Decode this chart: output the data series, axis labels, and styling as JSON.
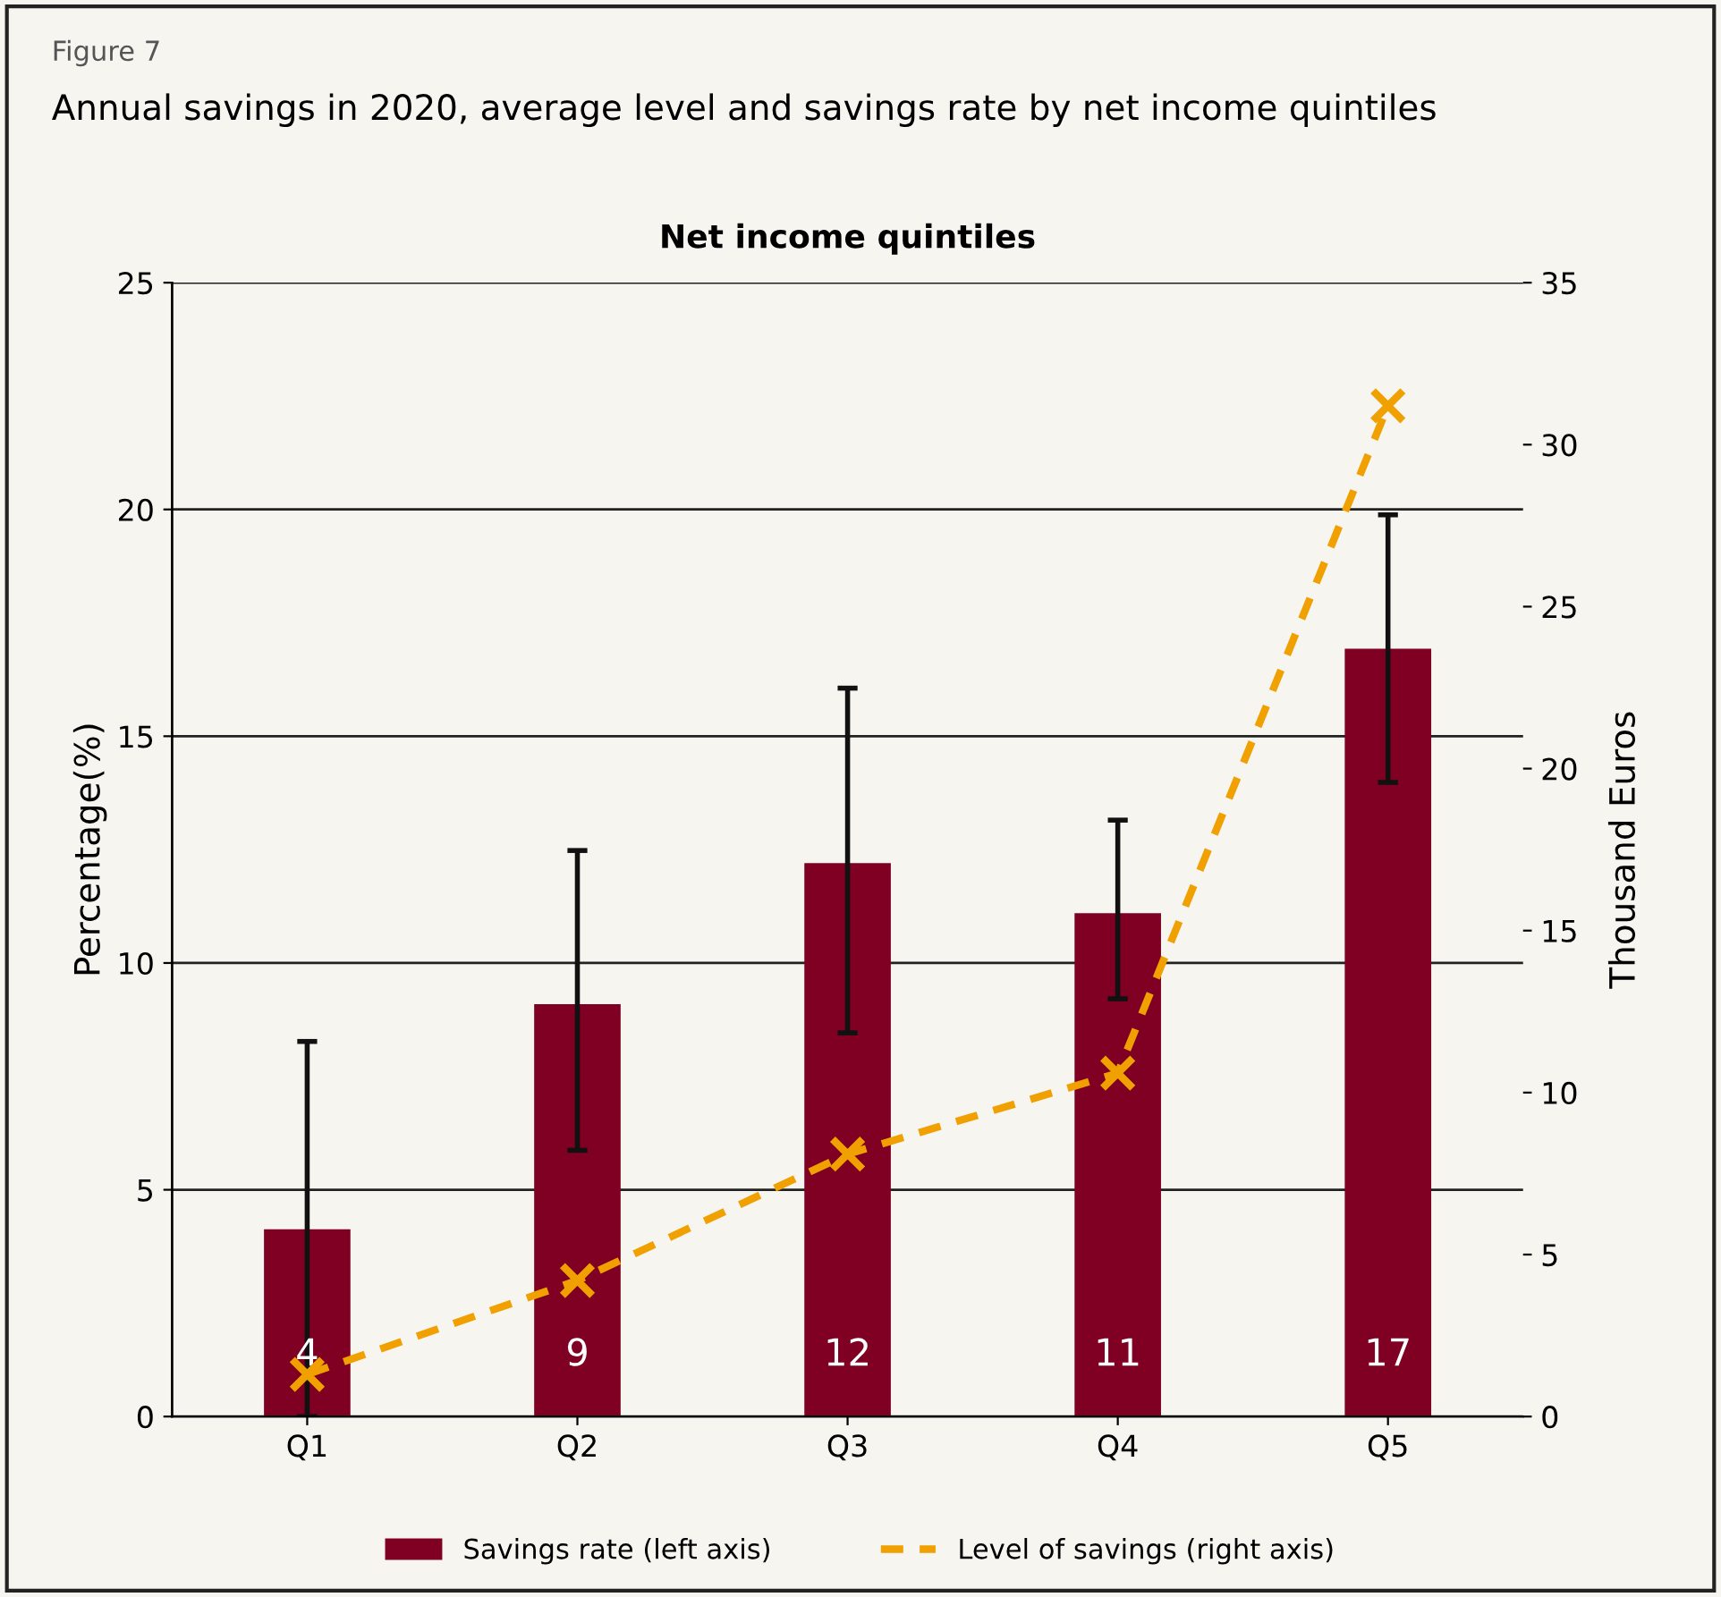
{
  "chart_data": {
    "type": "bar",
    "title": "Net income quintiles",
    "annotations": [
      "Figure 7",
      "Annual savings in 2020, average level and savings rate by net income quintiles"
    ],
    "ylabel": "Percentage(%)",
    "y2label": "Thousand Euros",
    "categories": [
      "Q1",
      "Q2",
      "Q3",
      "Q4",
      "Q5"
    ],
    "series": [
      {
        "name": "Savings rate (left axis)",
        "color": "#7f0023",
        "values": [
          4.13,
          9.09,
          12.2,
          11.1,
          16.93
        ],
        "errors": [
          [
            0.0,
            8.27
          ],
          [
            5.87,
            12.48
          ],
          [
            8.46,
            16.06
          ],
          [
            9.21,
            13.15
          ],
          [
            13.98,
            19.88
          ]
        ],
        "value_labels": [
          "4",
          "9",
          "12",
          "11",
          "17"
        ]
      },
      {
        "name": "Level of savings (right axis)",
        "type": "line",
        "axis": "y2",
        "color": "#f0a000",
        "marker": "cross",
        "line_style": "dashed",
        "values": [
          1.3,
          4.2,
          8.1,
          10.6,
          31.2
        ]
      }
    ],
    "ylim": [
      0,
      25
    ],
    "yticks": [
      0,
      5,
      10,
      15,
      20,
      25
    ],
    "y2lim": [
      0,
      35
    ],
    "y2ticks": [
      0,
      5,
      10,
      15,
      20,
      25,
      30,
      35
    ],
    "grid": "y",
    "legend": "bottom"
  }
}
